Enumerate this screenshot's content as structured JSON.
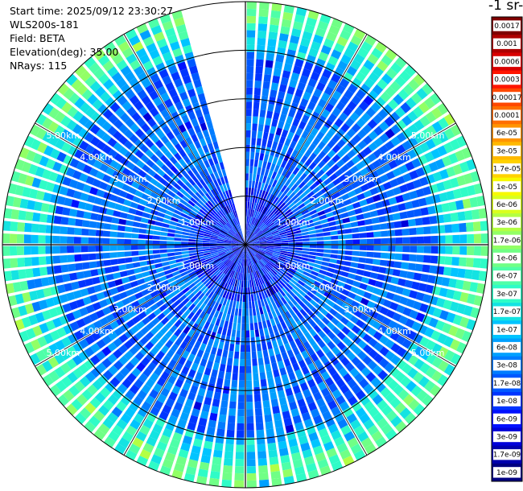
{
  "info": {
    "start_time": "Start time: 2025/09/12 23:30:27",
    "instrument": "WLS200s-181",
    "field": "Field: BETA",
    "elevation": "Elevation(deg): 35.00",
    "nrays": "NRays: 115"
  },
  "colorbar": {
    "title": "-1 sr-",
    "labels": [
      "0.0017",
      "0.001",
      "0.0006",
      "0.0003",
      "0.00017",
      "0.0001",
      "6e-05",
      "3e-05",
      "1.7e-05",
      "1e-05",
      "6e-06",
      "3e-06",
      "1.7e-06",
      "1e-06",
      "6e-07",
      "3e-07",
      "1.7e-07",
      "1e-07",
      "6e-08",
      "3e-08",
      "1.7e-08",
      "1e-08",
      "6e-09",
      "3e-09",
      "1.7e-09",
      "1e-09"
    ],
    "colors": [
      "#7f0000",
      "#ad0000",
      "#d80000",
      "#ff1500",
      "#ff4800",
      "#ff6f00",
      "#ff9400",
      "#ffb900",
      "#ffd200",
      "#f7f900",
      "#d9ff1e",
      "#b3ff44",
      "#92ff65",
      "#70ff86",
      "#4eff a8",
      "#2ffcc7",
      "#14e3e2",
      "#00c4ff",
      "#00a0ff",
      "#007cff",
      "#0058ff",
      "#0034ff",
      "#0010ff",
      "#0000d9",
      "#0000ad",
      "#000080"
    ]
  },
  "chart_data": {
    "type": "heatmap",
    "projection": "polar (PPI scan)",
    "field": "BETA",
    "elevation_deg": 35.0,
    "nrays": 115,
    "range_rings_km": [
      1,
      2,
      3,
      4,
      5
    ],
    "ring_labels": [
      "1.00km",
      "2.00km",
      "3.00km",
      "4.00km",
      "5.00km"
    ],
    "max_range_km": 5.0,
    "missing_azimuth_sector_deg": [
      345,
      360
    ],
    "color_scale": "log",
    "value_range": [
      1e-09,
      0.0017
    ],
    "dominant_value_inner": "3e-08",
    "dominant_value_outer_band": "1e-06"
  }
}
